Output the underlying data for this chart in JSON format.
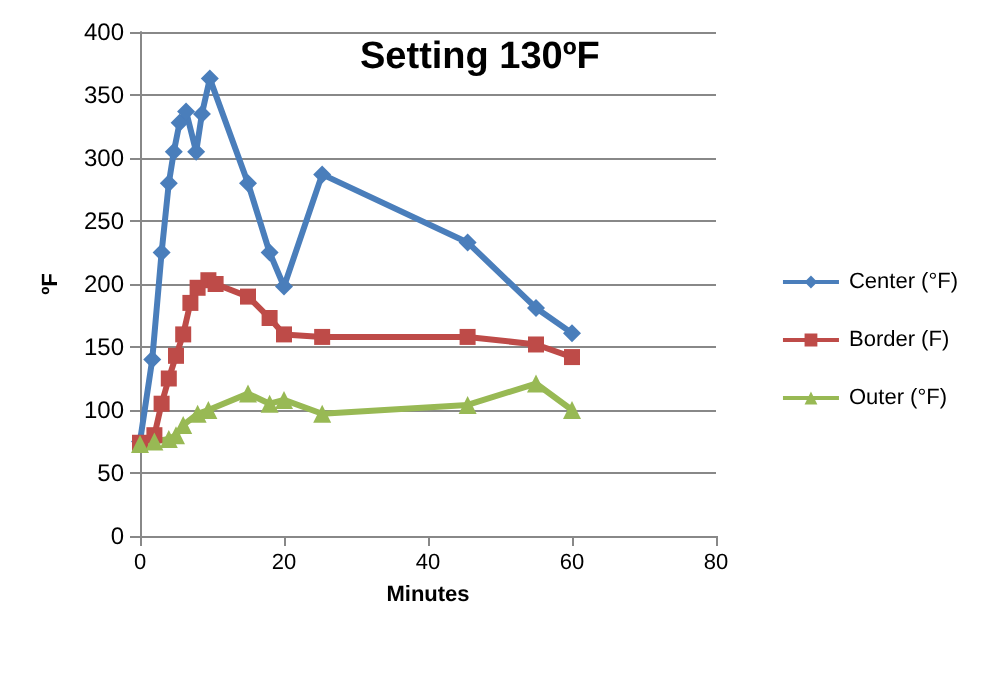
{
  "chart_data": {
    "type": "line",
    "title": "Setting 130ºF",
    "xlabel": "Minutes",
    "ylabel": "ºF",
    "xlim": [
      0,
      80
    ],
    "xticks": [
      0,
      20,
      40,
      60,
      80
    ],
    "ylim": [
      0,
      400
    ],
    "yticks": [
      0,
      50,
      100,
      150,
      200,
      250,
      300,
      350,
      400
    ],
    "grid": "y",
    "legend": "right",
    "series": [
      {
        "name": "Center (°F)",
        "color": "#4a7ebb",
        "marker": "diamond",
        "x": [
          0,
          1.7,
          3,
          4,
          4.7,
          5.5,
          6.4,
          7.8,
          8.6,
          9.7,
          15,
          18,
          20,
          25.3,
          45.5,
          55,
          60
        ],
        "values": [
          75,
          140,
          225,
          280,
          305,
          328,
          337,
          305,
          335,
          363,
          280,
          225,
          198,
          287,
          233,
          181,
          161
        ]
      },
      {
        "name": "Border (F)",
        "color": "#be4b48",
        "marker": "square",
        "x": [
          0,
          2,
          3,
          4,
          5,
          6,
          7,
          8,
          9.5,
          10.5,
          15,
          18,
          20,
          25.3,
          45.5,
          55,
          60
        ],
        "values": [
          74,
          80,
          105,
          125,
          143,
          160,
          185,
          197,
          203,
          200,
          190,
          173,
          160,
          158,
          158,
          152,
          142
        ]
      },
      {
        "name": "Outer (°F)",
        "color": "#98b954",
        "marker": "triangle",
        "x": [
          0,
          2,
          4,
          5,
          6,
          8,
          9.5,
          15,
          18,
          20,
          25.3,
          45.5,
          55,
          60
        ],
        "values": [
          73,
          75,
          77,
          80,
          88,
          97,
          100,
          113,
          105,
          108,
          97,
          104,
          121,
          100
        ]
      }
    ]
  }
}
